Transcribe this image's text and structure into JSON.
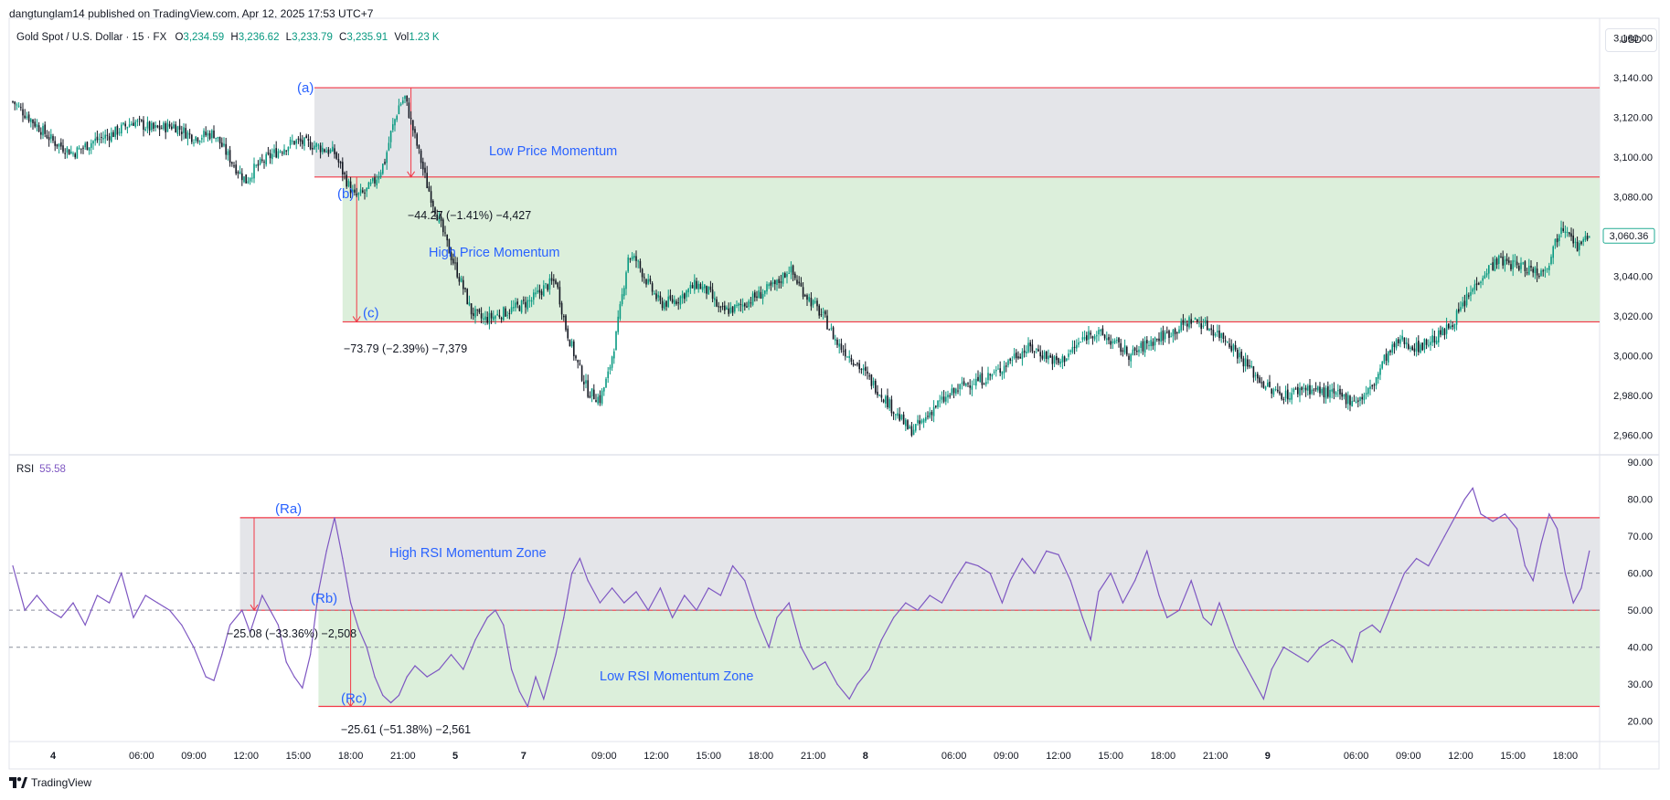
{
  "header": {
    "published": "dangtunglam14 published on TradingView.com, Apr 12, 2025 17:53 UTC+7"
  },
  "legend": {
    "symbol": "Gold Spot / U.S. Dollar · 15 · FX",
    "o_label": "O",
    "o_value": "3,234.59",
    "h_label": "H",
    "h_value": "3,236.62",
    "l_label": "L",
    "l_value": "3,233.79",
    "c_label": "C",
    "c_value": "3,235.91",
    "vol_label": "Vol",
    "vol_value": "1.23 K"
  },
  "rsi_legend": {
    "label": "RSI",
    "value": "55.58"
  },
  "currency": "USD",
  "footer": {
    "brand": "TradingView"
  },
  "colors": {
    "up": "#089981",
    "down": "#131722",
    "zone_gray": "#e4e5e9",
    "zone_green": "#dcefdb",
    "zone_line": "#f23645",
    "annotation_blue": "#2962ff",
    "rsi_line": "#7e57c2",
    "price_tag": "#22ab94"
  },
  "chart_data": [
    {
      "type": "candlestick",
      "name": "Gold Spot / U.S. Dollar",
      "ylim": [
        2950,
        3170
      ],
      "y_ticks": [
        "3,160.00",
        "3,140.00",
        "3,120.00",
        "3,100.00",
        "3,080.00",
        "3,060.00",
        "3,040.00",
        "3,020.00",
        "3,000.00",
        "2,980.00",
        "2,960.00"
      ],
      "last_price": "3,060.36",
      "close_path": [
        [
          0,
          3128
        ],
        [
          10,
          3118
        ],
        [
          20,
          3108
        ],
        [
          30,
          3102
        ],
        [
          40,
          3108
        ],
        [
          50,
          3112
        ],
        [
          60,
          3118
        ],
        [
          70,
          3114
        ],
        [
          80,
          3116
        ],
        [
          90,
          3110
        ],
        [
          100,
          3112
        ],
        [
          110,
          3096
        ],
        [
          116,
          3088
        ],
        [
          120,
          3094
        ],
        [
          130,
          3102
        ],
        [
          140,
          3108
        ],
        [
          150,
          3106
        ],
        [
          160,
          3102
        ],
        [
          166,
          3088
        ],
        [
          170,
          3080
        ],
        [
          175,
          3082
        ],
        [
          180,
          3088
        ],
        [
          185,
          3098
        ],
        [
          188,
          3112
        ],
        [
          192,
          3126
        ],
        [
          195,
          3130
        ],
        [
          198,
          3118
        ],
        [
          202,
          3102
        ],
        [
          206,
          3086
        ],
        [
          212,
          3068
        ],
        [
          218,
          3050
        ],
        [
          224,
          3034
        ],
        [
          228,
          3022
        ],
        [
          234,
          3018
        ],
        [
          240,
          3020
        ],
        [
          250,
          3024
        ],
        [
          258,
          3028
        ],
        [
          264,
          3034
        ],
        [
          270,
          3038
        ],
        [
          275,
          3014
        ],
        [
          280,
          2998
        ],
        [
          286,
          2982
        ],
        [
          292,
          2978
        ],
        [
          296,
          2990
        ],
        [
          300,
          3010
        ],
        [
          303,
          3030
        ],
        [
          306,
          3050
        ],
        [
          310,
          3048
        ],
        [
          316,
          3036
        ],
        [
          322,
          3026
        ],
        [
          330,
          3028
        ],
        [
          340,
          3036
        ],
        [
          346,
          3032
        ],
        [
          352,
          3022
        ],
        [
          360,
          3024
        ],
        [
          370,
          3030
        ],
        [
          380,
          3036
        ],
        [
          386,
          3044
        ],
        [
          392,
          3034
        ],
        [
          398,
          3026
        ],
        [
          404,
          3018
        ],
        [
          410,
          3006
        ],
        [
          418,
          2998
        ],
        [
          426,
          2988
        ],
        [
          434,
          2978
        ],
        [
          440,
          2970
        ],
        [
          446,
          2962
        ],
        [
          452,
          2966
        ],
        [
          458,
          2974
        ],
        [
          466,
          2980
        ],
        [
          474,
          2986
        ],
        [
          482,
          2988
        ],
        [
          490,
          2992
        ],
        [
          498,
          3000
        ],
        [
          506,
          3004
        ],
        [
          514,
          3000
        ],
        [
          520,
          2996
        ],
        [
          528,
          3004
        ],
        [
          536,
          3012
        ],
        [
          542,
          3010
        ],
        [
          548,
          3006
        ],
        [
          556,
          3000
        ],
        [
          564,
          3006
        ],
        [
          572,
          3010
        ],
        [
          580,
          3014
        ],
        [
          586,
          3018
        ],
        [
          592,
          3016
        ],
        [
          598,
          3012
        ],
        [
          604,
          3008
        ],
        [
          610,
          3000
        ],
        [
          618,
          2990
        ],
        [
          626,
          2982
        ],
        [
          634,
          2980
        ],
        [
          642,
          2984
        ],
        [
          650,
          2982
        ],
        [
          658,
          2980
        ],
        [
          664,
          2978
        ],
        [
          670,
          2978
        ],
        [
          676,
          2984
        ],
        [
          682,
          2998
        ],
        [
          690,
          3008
        ],
        [
          698,
          3004
        ],
        [
          706,
          3008
        ],
        [
          712,
          3012
        ],
        [
          718,
          3020
        ],
        [
          724,
          3030
        ],
        [
          730,
          3040
        ],
        [
          738,
          3048
        ],
        [
          746,
          3046
        ],
        [
          754,
          3044
        ],
        [
          760,
          3042
        ],
        [
          764,
          3048
        ],
        [
          770,
          3066
        ],
        [
          774,
          3064
        ],
        [
          778,
          3054
        ],
        [
          784,
          3060
        ]
      ],
      "annotations": [
        {
          "text": "(a)",
          "price": 3135
        },
        {
          "text": "(b)",
          "price": 3090
        },
        {
          "text": "(c)",
          "price": 3017
        },
        {
          "text": "Low Price Momentum"
        },
        {
          "text": "High Price Momentum"
        },
        {
          "text": "−44.27 (−1.41%) −4,427"
        },
        {
          "text": "−73.79 (−2.39%) −7,379"
        }
      ]
    },
    {
      "type": "line",
      "name": "RSI",
      "ylim": [
        15,
        92
      ],
      "y_ticks": [
        "90.00",
        "80.00",
        "70.00",
        "60.00",
        "50.00",
        "40.00",
        "30.00",
        "20.00"
      ],
      "reference_lines": [
        60,
        50,
        40
      ],
      "zones": {
        "upper": 75,
        "middle": 50,
        "lower": 24
      },
      "values": [
        [
          0,
          62
        ],
        [
          6,
          50
        ],
        [
          12,
          54
        ],
        [
          18,
          50
        ],
        [
          24,
          48
        ],
        [
          30,
          52
        ],
        [
          36,
          46
        ],
        [
          42,
          54
        ],
        [
          48,
          52
        ],
        [
          54,
          60
        ],
        [
          60,
          48
        ],
        [
          66,
          54
        ],
        [
          72,
          52
        ],
        [
          78,
          50
        ],
        [
          84,
          46
        ],
        [
          90,
          40
        ],
        [
          96,
          32
        ],
        [
          100,
          31
        ],
        [
          104,
          38
        ],
        [
          108,
          46
        ],
        [
          114,
          50
        ],
        [
          118,
          44
        ],
        [
          124,
          54
        ],
        [
          128,
          50
        ],
        [
          132,
          46
        ],
        [
          136,
          36
        ],
        [
          140,
          32
        ],
        [
          144,
          29
        ],
        [
          148,
          38
        ],
        [
          152,
          55
        ],
        [
          156,
          66
        ],
        [
          160,
          75
        ],
        [
          164,
          64
        ],
        [
          168,
          52
        ],
        [
          172,
          45
        ],
        [
          176,
          40
        ],
        [
          180,
          32
        ],
        [
          184,
          27
        ],
        [
          188,
          25
        ],
        [
          192,
          27
        ],
        [
          196,
          32
        ],
        [
          200,
          35
        ],
        [
          206,
          32
        ],
        [
          212,
          34
        ],
        [
          218,
          38
        ],
        [
          224,
          34
        ],
        [
          230,
          42
        ],
        [
          236,
          48
        ],
        [
          240,
          50
        ],
        [
          244,
          46
        ],
        [
          248,
          34
        ],
        [
          252,
          28
        ],
        [
          256,
          24
        ],
        [
          260,
          32
        ],
        [
          264,
          26
        ],
        [
          270,
          38
        ],
        [
          274,
          48
        ],
        [
          278,
          60
        ],
        [
          282,
          64
        ],
        [
          286,
          58
        ],
        [
          292,
          52
        ],
        [
          298,
          56
        ],
        [
          304,
          52
        ],
        [
          310,
          55
        ],
        [
          316,
          50
        ],
        [
          322,
          56
        ],
        [
          328,
          48
        ],
        [
          334,
          54
        ],
        [
          340,
          50
        ],
        [
          346,
          56
        ],
        [
          352,
          54
        ],
        [
          358,
          62
        ],
        [
          364,
          58
        ],
        [
          370,
          48
        ],
        [
          376,
          40
        ],
        [
          380,
          48
        ],
        [
          386,
          52
        ],
        [
          392,
          40
        ],
        [
          398,
          34
        ],
        [
          404,
          36
        ],
        [
          410,
          30
        ],
        [
          416,
          26
        ],
        [
          420,
          30
        ],
        [
          426,
          34
        ],
        [
          432,
          42
        ],
        [
          438,
          48
        ],
        [
          444,
          52
        ],
        [
          450,
          50
        ],
        [
          456,
          54
        ],
        [
          462,
          52
        ],
        [
          468,
          58
        ],
        [
          474,
          63
        ],
        [
          480,
          62
        ],
        [
          486,
          60
        ],
        [
          492,
          52
        ],
        [
          496,
          58
        ],
        [
          502,
          64
        ],
        [
          508,
          60
        ],
        [
          514,
          66
        ],
        [
          520,
          65
        ],
        [
          526,
          58
        ],
        [
          532,
          48
        ],
        [
          536,
          42
        ],
        [
          540,
          55
        ],
        [
          546,
          60
        ],
        [
          552,
          52
        ],
        [
          558,
          58
        ],
        [
          564,
          66
        ],
        [
          570,
          54
        ],
        [
          574,
          48
        ],
        [
          580,
          50
        ],
        [
          586,
          58
        ],
        [
          592,
          48
        ],
        [
          596,
          46
        ],
        [
          600,
          52
        ],
        [
          604,
          46
        ],
        [
          608,
          40
        ],
        [
          614,
          34
        ],
        [
          618,
          30
        ],
        [
          622,
          26
        ],
        [
          626,
          34
        ],
        [
          632,
          40
        ],
        [
          638,
          38
        ],
        [
          644,
          36
        ],
        [
          650,
          40
        ],
        [
          656,
          42
        ],
        [
          662,
          40
        ],
        [
          666,
          36
        ],
        [
          670,
          44
        ],
        [
          676,
          46
        ],
        [
          680,
          44
        ],
        [
          686,
          52
        ],
        [
          692,
          60
        ],
        [
          698,
          64
        ],
        [
          704,
          62
        ],
        [
          708,
          66
        ],
        [
          712,
          70
        ],
        [
          718,
          76
        ],
        [
          722,
          80
        ],
        [
          726,
          83
        ],
        [
          730,
          76
        ],
        [
          736,
          74
        ],
        [
          742,
          76
        ],
        [
          748,
          72
        ],
        [
          752,
          62
        ],
        [
          756,
          58
        ],
        [
          760,
          68
        ],
        [
          764,
          76
        ],
        [
          768,
          72
        ],
        [
          772,
          60
        ],
        [
          776,
          52
        ],
        [
          780,
          56
        ],
        [
          784,
          66
        ]
      ],
      "annotations": [
        {
          "text": "(Ra)"
        },
        {
          "text": "(Rb)"
        },
        {
          "text": "(Rc)"
        },
        {
          "text": "High RSI Momentum Zone"
        },
        {
          "text": "Low RSI Momentum Zone"
        },
        {
          "text": "−25.08 (−33.36%) −2,508"
        },
        {
          "text": "−25.61 (−51.38%) −2,561"
        }
      ]
    }
  ],
  "x_axis": {
    "ticks": [
      {
        "label": "4",
        "bar": 20
      },
      {
        "label": "06:00",
        "bar": 64
      },
      {
        "label": "09:00",
        "bar": 90
      },
      {
        "label": "12:00",
        "bar": 116
      },
      {
        "label": "15:00",
        "bar": 142
      },
      {
        "label": "18:00",
        "bar": 168
      },
      {
        "label": "21:00",
        "bar": 194
      },
      {
        "label": "5",
        "bar": 220
      },
      {
        "label": "7",
        "bar": 254
      },
      {
        "label": "09:00",
        "bar": 294
      },
      {
        "label": "12:00",
        "bar": 320
      },
      {
        "label": "15:00",
        "bar": 346
      },
      {
        "label": "18:00",
        "bar": 372
      },
      {
        "label": "21:00",
        "bar": 398
      },
      {
        "label": "8",
        "bar": 424
      },
      {
        "label": "06:00",
        "bar": 468
      },
      {
        "label": "09:00",
        "bar": 494
      },
      {
        "label": "12:00",
        "bar": 520
      },
      {
        "label": "15:00",
        "bar": 546
      },
      {
        "label": "18:00",
        "bar": 572
      },
      {
        "label": "21:00",
        "bar": 598
      },
      {
        "label": "9",
        "bar": 624
      },
      {
        "label": "06:00",
        "bar": 668
      },
      {
        "label": "09:00",
        "bar": 694
      },
      {
        "label": "12:00",
        "bar": 720
      },
      {
        "label": "15:00",
        "bar": 746
      },
      {
        "label": "18:00",
        "bar": 772
      }
    ]
  }
}
